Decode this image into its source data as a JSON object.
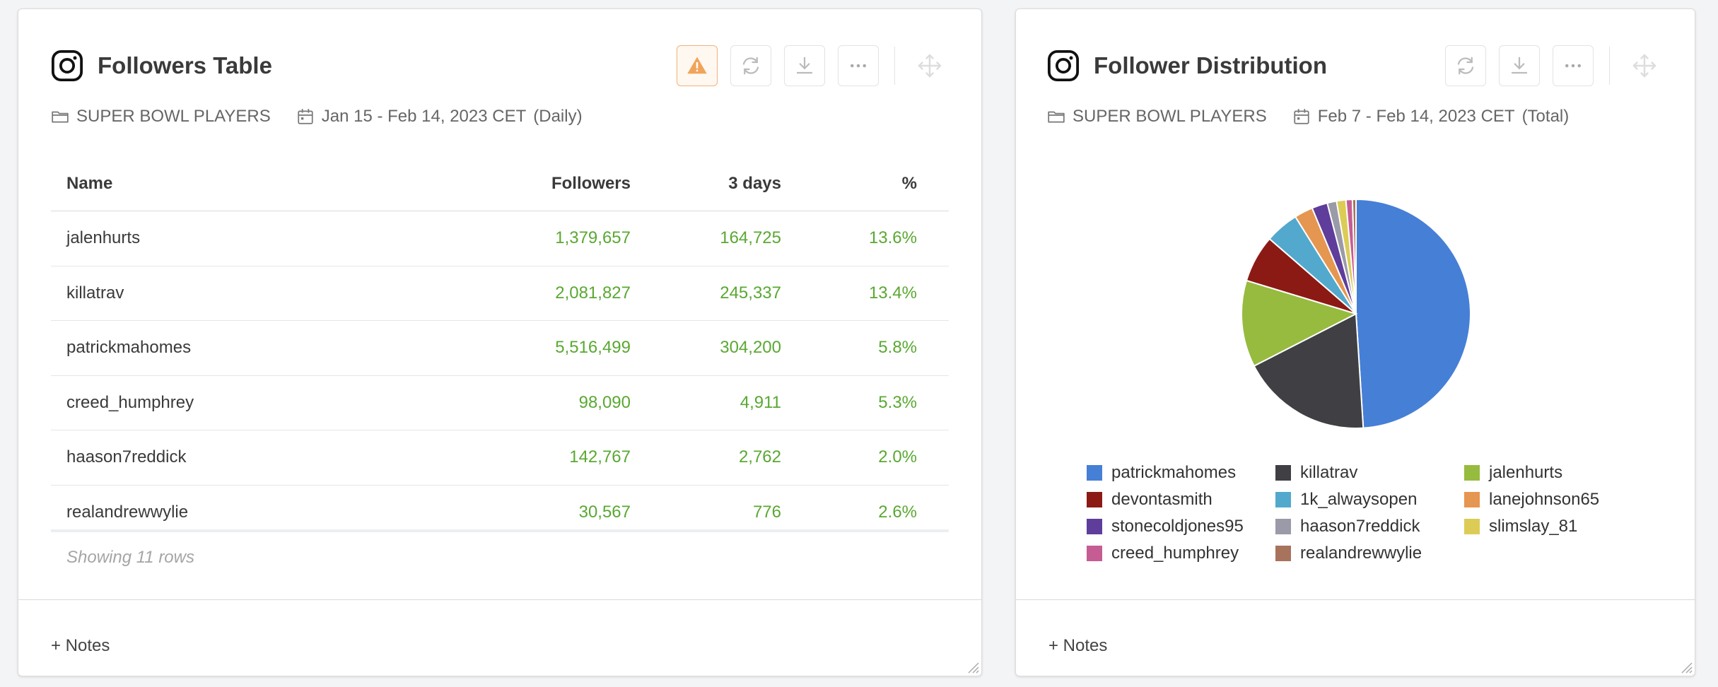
{
  "table_card": {
    "title": "Followers Table",
    "folder": "SUPER BOWL PLAYERS",
    "date_range": "Jan 15 - Feb 14, 2023 CET",
    "granularity": "(Daily)",
    "columns": {
      "name": "Name",
      "followers": "Followers",
      "three_days": "3 days",
      "pct": "%"
    },
    "rows": [
      {
        "name": "jalenhurts",
        "followers": "1,379,657",
        "three_days": "164,725",
        "pct": "13.6%"
      },
      {
        "name": "killatrav",
        "followers": "2,081,827",
        "three_days": "245,337",
        "pct": "13.4%"
      },
      {
        "name": "patrickmahomes",
        "followers": "5,516,499",
        "three_days": "304,200",
        "pct": "5.8%"
      },
      {
        "name": "creed_humphrey",
        "followers": "98,090",
        "three_days": "4,911",
        "pct": "5.3%"
      },
      {
        "name": "haason7reddick",
        "followers": "142,767",
        "three_days": "2,762",
        "pct": "2.0%"
      },
      {
        "name": "realandrewwylie",
        "followers": "30,567",
        "three_days": "776",
        "pct": "2.6%"
      }
    ],
    "showing": "Showing 11 rows",
    "notes": "+ Notes"
  },
  "pie_card": {
    "title": "Follower Distribution",
    "folder": "SUPER BOWL PLAYERS",
    "date_range": "Feb 7 - Feb 14, 2023 CET",
    "granularity": "(Total)",
    "notes": "+ Notes"
  },
  "icons": {
    "instagram": "instagram-icon",
    "warning": "warning-icon",
    "refresh": "refresh-icon",
    "download": "download-icon",
    "more": "more-icon",
    "move": "move-icon",
    "folder": "folder-icon",
    "calendar": "calendar-icon"
  },
  "colors": {
    "positive": "#5aa832",
    "warning": "#f0a45a"
  },
  "chart_data": {
    "type": "pie",
    "title": "Follower Distribution",
    "labels": [
      "patrickmahomes",
      "killatrav",
      "jalenhurts",
      "devontasmith",
      "1k_alwaysopen",
      "lanejohnson65",
      "stonecoldjones95",
      "haason7reddick",
      "slimslay_81",
      "creed_humphrey",
      "realandrewwylie"
    ],
    "values": [
      48.5,
      18.3,
      12.1,
      6.6,
      4.7,
      2.6,
      2.2,
      1.3,
      1.3,
      0.9,
      0.5
    ],
    "colors": [
      "#467fd6",
      "#404044",
      "#97bb3f",
      "#8c1a14",
      "#52a9cd",
      "#e59650",
      "#5f3d9b",
      "#9a9aa8",
      "#dccc56",
      "#c65c94",
      "#a8735c"
    ],
    "legend_position": "bottom"
  }
}
